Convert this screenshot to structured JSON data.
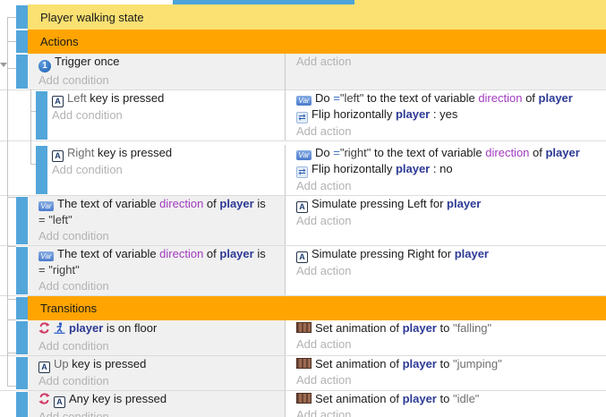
{
  "colors": {
    "group_yellow": "#fae172",
    "group_orange": "#ffa400",
    "event_bar_blue": "#53a6da",
    "top_strip_blue": "#4ba3d9",
    "object_text": "#2c3a94",
    "variable_text": "#a13bbf",
    "invert_arrow_red": "#d23b68",
    "placeholder_gray": "#b3b3b3"
  },
  "icons": {
    "trigger-once-icon": "1",
    "keyboard-icon": "A",
    "variable-icon": "Var",
    "flip-icon": "⇄",
    "invert-icon": "",
    "platformer-icon": "",
    "animation-icon": ""
  },
  "rows": [
    {
      "kind": "group",
      "tone": "yellow",
      "label": "Player walking state"
    },
    {
      "kind": "group",
      "tone": "orange",
      "label": "Actions"
    },
    {
      "kind": "event",
      "indent": 0,
      "tone": "solid",
      "conditions": [
        {
          "icons": [
            "trigger-once-icon"
          ],
          "segments": [
            {
              "t": "Trigger once",
              "s": "plain"
            }
          ]
        }
      ],
      "cond_placeholder": "Add condition",
      "actions": [],
      "act_placeholder": "Add action"
    },
    {
      "kind": "event",
      "indent": 1,
      "tone": "sub",
      "conditions": [
        {
          "icons": [
            "keyboard-icon"
          ],
          "segments": [
            {
              "t": "Left ",
              "s": "param"
            },
            {
              "t": "key is pressed",
              "s": "plain"
            }
          ]
        }
      ],
      "cond_placeholder": "Add condition",
      "actions": [
        {
          "icons": [
            "variable-icon"
          ],
          "segments": [
            {
              "t": "Do ",
              "s": "plain"
            },
            {
              "t": "=",
              "s": "op"
            },
            {
              "t": "\"left\"",
              "s": "string"
            },
            {
              "t": " to the text of variable ",
              "s": "plain"
            },
            {
              "t": "direction",
              "s": "variable"
            },
            {
              "t": " of ",
              "s": "plain"
            },
            {
              "t": "player",
              "s": "object"
            }
          ]
        },
        {
          "icons": [
            "flip-icon"
          ],
          "segments": [
            {
              "t": "Flip horizontally ",
              "s": "plain"
            },
            {
              "t": "player",
              "s": "object"
            },
            {
              "t": " : yes",
              "s": "plain"
            }
          ]
        }
      ],
      "act_placeholder": "Add action"
    },
    {
      "kind": "event",
      "indent": 1,
      "tone": "sub",
      "gap": true,
      "conditions": [
        {
          "icons": [
            "keyboard-icon"
          ],
          "segments": [
            {
              "t": "Right ",
              "s": "param"
            },
            {
              "t": "key is pressed",
              "s": "plain"
            }
          ]
        }
      ],
      "cond_placeholder": "Add condition",
      "actions": [
        {
          "icons": [
            "variable-icon"
          ],
          "segments": [
            {
              "t": "Do ",
              "s": "plain"
            },
            {
              "t": "=",
              "s": "op"
            },
            {
              "t": "\"right\"",
              "s": "string"
            },
            {
              "t": " to the text of variable ",
              "s": "plain"
            },
            {
              "t": "direction",
              "s": "variable"
            },
            {
              "t": " of ",
              "s": "plain"
            },
            {
              "t": "player",
              "s": "object"
            }
          ]
        },
        {
          "icons": [
            "flip-icon"
          ],
          "segments": [
            {
              "t": "Flip horizontally ",
              "s": "plain"
            },
            {
              "t": "player",
              "s": "object"
            },
            {
              "t": " : no",
              "s": "plain"
            }
          ]
        }
      ],
      "act_placeholder": "Add action"
    },
    {
      "kind": "event",
      "indent": 0,
      "tone": "normal",
      "conditions": [
        {
          "icons": [
            "variable-icon"
          ],
          "segments": [
            {
              "t": "The text of variable ",
              "s": "plain"
            },
            {
              "t": "direction",
              "s": "variable"
            },
            {
              "t": " of ",
              "s": "plain"
            },
            {
              "t": "player",
              "s": "object"
            },
            {
              "t": " is",
              "s": "plain"
            }
          ]
        },
        {
          "icons": [],
          "segments": [
            {
              "t": "= \"left\"",
              "s": "string"
            }
          ]
        }
      ],
      "cond_placeholder": "Add condition",
      "actions": [
        {
          "icons": [
            "keyboard-icon"
          ],
          "segments": [
            {
              "t": "Simulate pressing Left for ",
              "s": "plain"
            },
            {
              "t": "player",
              "s": "object"
            }
          ]
        }
      ],
      "act_placeholder": "Add action"
    },
    {
      "kind": "event",
      "indent": 0,
      "tone": "normal",
      "conditions": [
        {
          "icons": [
            "variable-icon"
          ],
          "segments": [
            {
              "t": "The text of variable ",
              "s": "plain"
            },
            {
              "t": "direction",
              "s": "variable"
            },
            {
              "t": " of ",
              "s": "plain"
            },
            {
              "t": "player",
              "s": "object"
            },
            {
              "t": " is",
              "s": "plain"
            }
          ]
        },
        {
          "icons": [],
          "segments": [
            {
              "t": "= \"right\"",
              "s": "string"
            }
          ]
        }
      ],
      "cond_placeholder": "Add condition",
      "actions": [
        {
          "icons": [
            "keyboard-icon"
          ],
          "segments": [
            {
              "t": "Simulate pressing Right for ",
              "s": "plain"
            },
            {
              "t": "player",
              "s": "object"
            }
          ]
        }
      ],
      "act_placeholder": "Add action"
    },
    {
      "kind": "group",
      "tone": "orange",
      "label": "Transitions"
    },
    {
      "kind": "event",
      "indent": 0,
      "tone": "normal",
      "conditions": [
        {
          "icons": [
            "invert-icon",
            "platformer-icon"
          ],
          "segments": [
            {
              "t": "player",
              "s": "object"
            },
            {
              "t": " is on floor",
              "s": "plain"
            }
          ]
        }
      ],
      "cond_placeholder": "Add condition",
      "actions": [
        {
          "icons": [
            "animation-icon"
          ],
          "segments": [
            {
              "t": "Set animation of ",
              "s": "plain"
            },
            {
              "t": "player",
              "s": "object"
            },
            {
              "t": " to ",
              "s": "plain"
            },
            {
              "t": "\"falling\"",
              "s": "quote"
            }
          ]
        }
      ],
      "act_placeholder": "Add action"
    },
    {
      "kind": "event",
      "indent": 0,
      "tone": "normal",
      "conditions": [
        {
          "icons": [
            "keyboard-icon"
          ],
          "segments": [
            {
              "t": "Up ",
              "s": "param"
            },
            {
              "t": "key is pressed",
              "s": "plain"
            }
          ]
        }
      ],
      "cond_placeholder": "Add condition",
      "actions": [
        {
          "icons": [
            "animation-icon"
          ],
          "segments": [
            {
              "t": "Set animation of ",
              "s": "plain"
            },
            {
              "t": "player",
              "s": "object"
            },
            {
              "t": " to ",
              "s": "plain"
            },
            {
              "t": "\"jumping\"",
              "s": "quote"
            }
          ]
        }
      ],
      "act_placeholder": "Add action"
    },
    {
      "kind": "event",
      "indent": 0,
      "tone": "normal",
      "conditions": [
        {
          "icons": [
            "invert-icon",
            "keyboard-icon"
          ],
          "segments": [
            {
              "t": "Any key is pressed",
              "s": "plain"
            }
          ]
        }
      ],
      "cond_placeholder": "Add condition",
      "actions": [
        {
          "icons": [
            "animation-icon"
          ],
          "segments": [
            {
              "t": "Set animation of ",
              "s": "plain"
            },
            {
              "t": "player",
              "s": "object"
            },
            {
              "t": " to ",
              "s": "plain"
            },
            {
              "t": "\"idle\"",
              "s": "quote"
            }
          ]
        }
      ],
      "act_placeholder": "Add action"
    }
  ]
}
